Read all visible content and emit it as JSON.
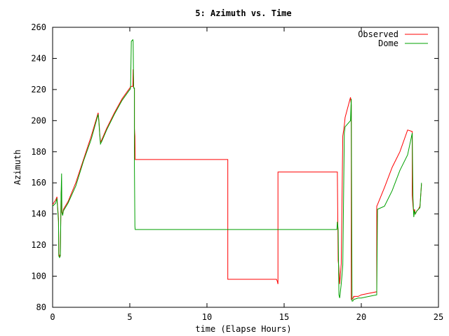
{
  "chart_data": {
    "type": "line",
    "title": "5: Azimuth vs. Time",
    "xlabel": "time (Elapse Hours)",
    "ylabel": "Azimuth",
    "xlim": [
      0,
      25
    ],
    "ylim": [
      80,
      260
    ],
    "xticks": [
      0,
      5,
      10,
      15,
      20,
      25
    ],
    "yticks": [
      80,
      100,
      120,
      140,
      160,
      180,
      200,
      220,
      240,
      260
    ],
    "grid": false,
    "legend_position": "top-right",
    "series": [
      {
        "name": "Observed",
        "color": "#ff0000",
        "x": [
          0,
          0.2,
          0.28,
          0.3,
          0.38,
          0.4,
          0.45,
          0.5,
          0.55,
          0.58,
          0.6,
          0.65,
          0.7,
          1.0,
          1.5,
          2.0,
          2.5,
          2.95,
          3.0,
          3.05,
          3.1,
          3.2,
          3.5,
          4.0,
          4.5,
          5.0,
          5.02,
          5.05,
          5.1,
          5.2,
          5.22,
          5.25,
          5.3,
          5.3,
          5.33,
          5.35,
          11.3,
          11.35,
          11.35,
          14.5,
          14.55,
          14.6,
          14.6,
          18.45,
          18.45,
          18.5,
          18.55,
          18.6,
          18.7,
          18.8,
          18.9,
          18.95,
          19.3,
          19.35,
          19.35,
          19.4,
          19.45,
          19.5,
          19.5,
          19.8,
          20.0,
          20.5,
          21.0,
          21.0,
          21.05,
          21.5,
          22.0,
          22.5,
          23.0,
          23.3,
          23.3,
          23.35,
          23.4,
          23.45,
          23.5,
          23.6,
          23.7,
          23.8,
          23.9
        ],
        "y": [
          146,
          149,
          151,
          148,
          137,
          114,
          113,
          114,
          153,
          157,
          141,
          140,
          143,
          148,
          160,
          175,
          190,
          205,
          200,
          192,
          186,
          188,
          195,
          205,
          214,
          221,
          221,
          222,
          222,
          222,
          233,
          221,
          221,
          195,
          190,
          175,
          175,
          175,
          98,
          98,
          97,
          95,
          167,
          167,
          165,
          110,
          105,
          95,
          108,
          190,
          197,
          202,
          215,
          210,
          85,
          85,
          86,
          86,
          87,
          87,
          88,
          89,
          90,
          145,
          146,
          157,
          170,
          180,
          194,
          193,
          152,
          145,
          141,
          143,
          140,
          142,
          143,
          145,
          159
        ]
      },
      {
        "name": "Dome",
        "color": "#00a000",
        "x": [
          0,
          0.2,
          0.28,
          0.3,
          0.38,
          0.4,
          0.45,
          0.5,
          0.55,
          0.58,
          0.6,
          0.65,
          0.7,
          1.0,
          1.5,
          2.0,
          2.5,
          2.95,
          3.0,
          3.05,
          3.1,
          3.2,
          3.5,
          4.0,
          4.5,
          5.0,
          5.02,
          5.05,
          5.1,
          5.2,
          5.22,
          5.25,
          5.3,
          5.3,
          5.33,
          5.35,
          14.6,
          18.4,
          18.42,
          18.45,
          18.5,
          18.55,
          18.6,
          18.7,
          18.8,
          18.9,
          18.95,
          19.3,
          19.35,
          19.35,
          19.4,
          19.45,
          19.5,
          19.5,
          19.8,
          20.0,
          20.5,
          21.0,
          21.0,
          21.05,
          21.5,
          22.0,
          22.5,
          23.0,
          23.3,
          23.3,
          23.35,
          23.4,
          23.45,
          23.5,
          23.6,
          23.7,
          23.8,
          23.9
        ],
        "y": [
          145,
          147,
          150,
          147,
          135,
          113,
          112,
          113,
          153,
          166,
          141,
          139,
          142,
          147,
          158,
          174,
          188,
          204,
          199,
          191,
          185,
          187,
          194,
          204,
          213,
          220,
          220,
          221,
          251,
          252,
          251,
          221,
          221,
          170,
          132,
          130,
          130,
          130,
          130,
          135,
          130,
          88,
          86,
          95,
          107,
          192,
          196,
          200,
          214,
          209,
          84,
          84,
          85,
          85,
          86,
          86,
          87,
          88,
          89,
          143,
          145,
          155,
          168,
          178,
          192,
          191,
          150,
          138,
          142,
          140,
          142,
          143,
          144,
          160
        ]
      }
    ]
  }
}
